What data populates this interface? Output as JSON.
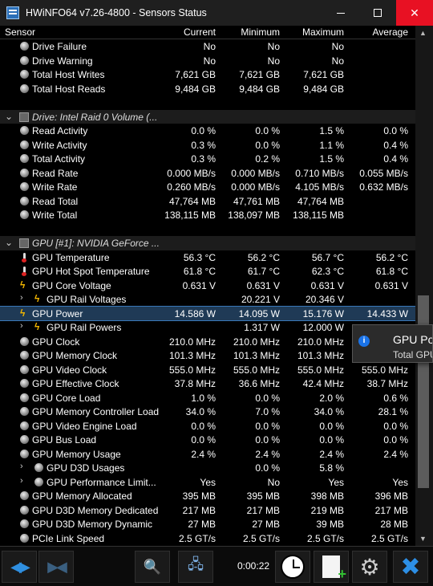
{
  "window": {
    "title": "HWiNFO64 v7.26-4800 - Sensors Status",
    "minimize": "minimize",
    "maximize": "maximize",
    "close": "✕"
  },
  "header": {
    "sensor": "Sensor",
    "current": "Current",
    "minimum": "Minimum",
    "maximum": "Maximum",
    "average": "Average"
  },
  "host_rows": [
    {
      "label": "Drive Failure",
      "cur": "No",
      "min": "No",
      "max": "No",
      "avg": ""
    },
    {
      "label": "Drive Warning",
      "cur": "No",
      "min": "No",
      "max": "No",
      "avg": ""
    },
    {
      "label": "Total Host Writes",
      "cur": "7,621 GB",
      "min": "7,621 GB",
      "max": "7,621 GB",
      "avg": ""
    },
    {
      "label": "Total Host Reads",
      "cur": "9,484 GB",
      "min": "9,484 GB",
      "max": "9,484 GB",
      "avg": ""
    }
  ],
  "drive_group": {
    "label": "Drive: Intel Raid 0 Volume (..."
  },
  "drive_rows": [
    {
      "label": "Read Activity",
      "cur": "0.0 %",
      "min": "0.0 %",
      "max": "1.5 %",
      "avg": "0.0 %"
    },
    {
      "label": "Write Activity",
      "cur": "0.3 %",
      "min": "0.0 %",
      "max": "1.1 %",
      "avg": "0.4 %"
    },
    {
      "label": "Total Activity",
      "cur": "0.3 %",
      "min": "0.2 %",
      "max": "1.5 %",
      "avg": "0.4 %"
    },
    {
      "label": "Read Rate",
      "cur": "0.000 MB/s",
      "min": "0.000 MB/s",
      "max": "0.710 MB/s",
      "avg": "0.055 MB/s"
    },
    {
      "label": "Write Rate",
      "cur": "0.260 MB/s",
      "min": "0.000 MB/s",
      "max": "4.105 MB/s",
      "avg": "0.632 MB/s"
    },
    {
      "label": "Read Total",
      "cur": "47,764 MB",
      "min": "47,761 MB",
      "max": "47,764 MB",
      "avg": ""
    },
    {
      "label": "Write Total",
      "cur": "138,115 MB",
      "min": "138,097 MB",
      "max": "138,115 MB",
      "avg": ""
    }
  ],
  "gpu_group": {
    "label": "GPU [#1]: NVIDIA GeForce ..."
  },
  "gpu_rows": [
    {
      "label": "GPU Temperature",
      "icon": "thermometer-icon",
      "sub": false,
      "cur": "56.3 °C",
      "min": "56.2 °C",
      "max": "56.7 °C",
      "avg": "56.2 °C"
    },
    {
      "label": "GPU Hot Spot Temperature",
      "icon": "thermometer-icon",
      "sub": false,
      "cur": "61.8 °C",
      "min": "61.7 °C",
      "max": "62.3 °C",
      "avg": "61.8 °C"
    },
    {
      "label": "GPU Core Voltage",
      "icon": "lightning-icon",
      "sub": false,
      "cur": "0.631 V",
      "min": "0.631 V",
      "max": "0.631 V",
      "avg": "0.631 V"
    },
    {
      "label": "GPU Rail Voltages",
      "icon": "lightning-icon",
      "sub": true,
      "cur": "",
      "min": "20.221 V",
      "max": "20.346 V",
      "avg": ""
    },
    {
      "label": "GPU Power",
      "icon": "lightning-icon",
      "sub": false,
      "selected": true,
      "cur": "14.586 W",
      "min": "14.095 W",
      "max": "15.176 W",
      "avg": "14.433 W"
    },
    {
      "label": "GPU Rail Powers",
      "icon": "lightning-icon",
      "sub": true,
      "cur": "",
      "min": "1.317 W",
      "max": "12.000 W",
      "avg": ""
    },
    {
      "label": "GPU Clock",
      "icon": "clock-dot-icon",
      "sub": false,
      "cur": "210.0 MHz",
      "min": "210.0 MHz",
      "max": "210.0 MHz",
      "avg": ""
    },
    {
      "label": "GPU Memory Clock",
      "icon": "clock-dot-icon",
      "sub": false,
      "cur": "101.3 MHz",
      "min": "101.3 MHz",
      "max": "101.3 MHz",
      "avg": ""
    },
    {
      "label": "GPU Video Clock",
      "icon": "clock-dot-icon",
      "sub": false,
      "cur": "555.0 MHz",
      "min": "555.0 MHz",
      "max": "555.0 MHz",
      "avg": "555.0 MHz"
    },
    {
      "label": "GPU Effective Clock",
      "icon": "clock-dot-icon",
      "sub": false,
      "cur": "37.8 MHz",
      "min": "36.6 MHz",
      "max": "42.4 MHz",
      "avg": "38.7 MHz"
    },
    {
      "label": "GPU Core Load",
      "icon": "load-dot-icon",
      "sub": false,
      "cur": "1.0 %",
      "min": "0.0 %",
      "max": "2.0 %",
      "avg": "0.6 %"
    },
    {
      "label": "GPU Memory Controller Load",
      "icon": "load-dot-icon",
      "sub": false,
      "cur": "34.0 %",
      "min": "7.0 %",
      "max": "34.0 %",
      "avg": "28.1 %"
    },
    {
      "label": "GPU Video Engine Load",
      "icon": "load-dot-icon",
      "sub": false,
      "cur": "0.0 %",
      "min": "0.0 %",
      "max": "0.0 %",
      "avg": "0.0 %"
    },
    {
      "label": "GPU Bus Load",
      "icon": "load-dot-icon",
      "sub": false,
      "cur": "0.0 %",
      "min": "0.0 %",
      "max": "0.0 %",
      "avg": "0.0 %"
    },
    {
      "label": "GPU Memory Usage",
      "icon": "load-dot-icon",
      "sub": false,
      "cur": "2.4 %",
      "min": "2.4 %",
      "max": "2.4 %",
      "avg": "2.4 %"
    },
    {
      "label": "GPU D3D Usages",
      "icon": "load-dot-icon",
      "sub": true,
      "cur": "",
      "min": "0.0 %",
      "max": "5.8 %",
      "avg": ""
    },
    {
      "label": "GPU Performance Limit...",
      "icon": "load-dot-icon",
      "sub": true,
      "cur": "Yes",
      "min": "No",
      "max": "Yes",
      "avg": "Yes"
    },
    {
      "label": "GPU Memory Allocated",
      "icon": "memory-dot-icon",
      "sub": false,
      "cur": "395 MB",
      "min": "395 MB",
      "max": "398 MB",
      "avg": "396 MB"
    },
    {
      "label": "GPU D3D Memory Dedicated",
      "icon": "memory-dot-icon",
      "sub": false,
      "cur": "217 MB",
      "min": "217 MB",
      "max": "219 MB",
      "avg": "217 MB"
    },
    {
      "label": "GPU D3D Memory Dynamic",
      "icon": "memory-dot-icon",
      "sub": false,
      "cur": "27 MB",
      "min": "27 MB",
      "max": "39 MB",
      "avg": "28 MB"
    },
    {
      "label": "PCIe Link Speed",
      "icon": "bus-dot-icon",
      "sub": false,
      "cur": "2.5 GT/s",
      "min": "2.5 GT/s",
      "max": "2.5 GT/s",
      "avg": "2.5 GT/s"
    }
  ],
  "tooltip": {
    "title": "GPU Power",
    "text": "Total GPU Power"
  },
  "toolbar": {
    "timer": "0:00:22"
  }
}
